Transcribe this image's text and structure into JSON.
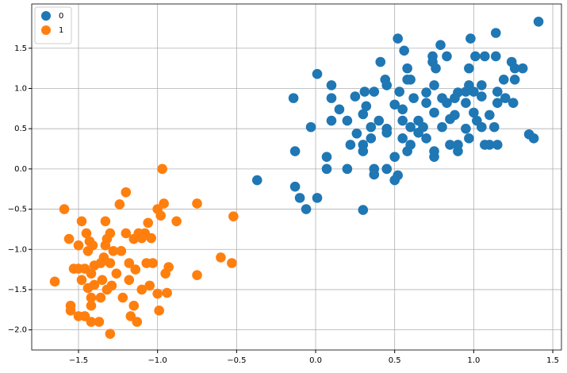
{
  "chart_data": {
    "type": "scatter",
    "xlim": [
      -1.796,
      1.555
    ],
    "ylim": [
      -2.25,
      2.05
    ],
    "xticks": [
      {
        "value": -1.5,
        "label": "−1.5"
      },
      {
        "value": -1.0,
        "label": "−1.0"
      },
      {
        "value": -0.5,
        "label": "−0.5"
      },
      {
        "value": 0,
        "label": "0.0"
      },
      {
        "value": 0.5,
        "label": "0.5"
      },
      {
        "value": 1.0,
        "label": "1.0"
      },
      {
        "value": 1.5,
        "label": "1.5"
      }
    ],
    "yticks": [
      {
        "value": -2.0,
        "label": "−2.0"
      },
      {
        "value": -1.5,
        "label": "−1.5"
      },
      {
        "value": -1.0,
        "label": "−1.0"
      },
      {
        "value": -0.5,
        "label": "−0.5"
      },
      {
        "value": 0,
        "label": "0.0"
      },
      {
        "value": 0.5,
        "label": "0.5"
      },
      {
        "value": 1.0,
        "label": "1.0"
      },
      {
        "value": 1.5,
        "label": "1.5"
      }
    ],
    "grid": true,
    "legend": "upper left",
    "series": [
      {
        "name": "0",
        "color": "#1f77b4",
        "x": [
          1.41,
          1.14,
          0.52,
          0.98,
          0.79,
          0.56,
          1.07,
          1.01,
          1.14,
          0.74,
          0.83,
          1.24,
          0.41,
          0.74,
          1.31,
          1.26,
          0.76,
          0.58,
          0.01,
          0.97,
          0.44,
          0.58,
          0.6,
          1.19,
          1.26,
          0.1,
          0.75,
          0.45,
          0.97,
          1.05,
          0.53,
          0.37,
          0.31,
          0.95,
          1.15,
          1.35,
          0.32,
          0.3,
          0.45,
          0.5,
          0.55,
          0.6,
          0.65,
          0.7,
          0.75,
          0.8,
          0.85,
          0.9,
          0.95,
          1.0,
          1.05,
          1.1,
          1.15,
          1.2,
          1.25,
          0.6,
          0.7,
          0.75,
          0.85,
          0.9,
          0.55,
          0.5,
          0.52,
          0.45,
          0.37,
          0.37,
          0.5,
          0.3,
          0.3,
          0.22,
          0.2,
          0.07,
          0.07,
          0.1,
          0.2,
          0.15,
          0.25,
          -0.03,
          -0.14,
          0.1,
          -0.13,
          -0.37,
          -0.13,
          -0.1,
          -0.06,
          0.01,
          0.3,
          0.4,
          0.45,
          0.65,
          0.8,
          0.95,
          1.02,
          1.07,
          1.15,
          1.13,
          1.0,
          0.88,
          0.83,
          0.68,
          0.58,
          0.75,
          0.7,
          0.62,
          1.38,
          1.1,
          0.88,
          0.35,
          0.26,
          0.35,
          0.55,
          1.05,
          0.97,
          0.9
        ],
        "values": [
          1.83,
          1.69,
          1.62,
          1.62,
          1.54,
          1.47,
          1.4,
          1.4,
          1.4,
          1.4,
          1.4,
          1.33,
          1.33,
          1.33,
          1.25,
          1.25,
          1.25,
          1.25,
          1.18,
          1.25,
          1.11,
          1.11,
          1.11,
          1.11,
          1.11,
          1.04,
          1.04,
          1.04,
          1.04,
          1.04,
          0.96,
          0.96,
          0.96,
          0.96,
          0.96,
          0.43,
          0.78,
          0.68,
          0.5,
          0.8,
          0.74,
          0.52,
          0.6,
          0.82,
          0.7,
          0.88,
          0.62,
          0.95,
          0.5,
          0.7,
          0.52,
          0.3,
          0.82,
          0.88,
          0.82,
          0.3,
          0.38,
          0.15,
          0.3,
          0.22,
          0.38,
          0.15,
          -0.08,
          0,
          0,
          -0.07,
          -0.14,
          0.3,
          0.22,
          0.3,
          0,
          0,
          0.15,
          0.6,
          0.6,
          0.74,
          0.9,
          0.52,
          0.88,
          0.88,
          0.22,
          -0.14,
          -0.22,
          -0.36,
          -0.5,
          -0.36,
          -0.51,
          0.6,
          0.45,
          0.45,
          0.52,
          0.82,
          0.6,
          0.3,
          0.3,
          0.52,
          0.96,
          0.88,
          0.82,
          0.52,
          0.22,
          0.22,
          0.95,
          0.88,
          0.38,
          0.67,
          0.67,
          0.52,
          0.44,
          0.38,
          0.6,
          0.9,
          0.38,
          0.3
        ]
      },
      {
        "name": "1",
        "color": "#ff7f0e",
        "x": [
          -0.97,
          -1.2,
          -1.59,
          -1.48,
          -1.33,
          -1.24,
          -0.96,
          -0.75,
          -1.06,
          -0.88,
          -1.0,
          -0.98,
          -0.52,
          -1.56,
          -1.5,
          -1.45,
          -1.43,
          -1.41,
          -1.32,
          -1.3,
          -1.2,
          -1.12,
          -1.08,
          -1.1,
          -1.04,
          -1.15,
          -1.28,
          -1.44,
          -1.34,
          -1.3,
          -1.4,
          -1.46,
          -1.5,
          -1.53,
          -1.42,
          -1.48,
          -1.44,
          -1.4,
          -1.35,
          -1.26,
          -1.18,
          -1.14,
          -1.07,
          -0.95,
          -0.93,
          -1.03,
          -1.18,
          -1.1,
          -1.05,
          -1.0,
          -0.94,
          -0.75,
          -0.6,
          -0.53,
          -1.65,
          -1.55,
          -1.55,
          -1.5,
          -1.46,
          -1.42,
          -1.37,
          -1.42,
          -1.42,
          -1.36,
          -1.32,
          -1.29,
          -1.22,
          -1.17,
          -1.13,
          -1.15,
          -1.3,
          -0.99,
          -1.23,
          -1.36,
          -1.33
        ],
        "values": [
          0,
          -0.29,
          -0.5,
          -0.65,
          -0.65,
          -0.44,
          -0.43,
          -0.43,
          -0.67,
          -0.65,
          -0.5,
          -0.58,
          -0.59,
          -0.87,
          -0.95,
          -0.8,
          -0.9,
          -0.95,
          -0.87,
          -0.8,
          -0.8,
          -0.8,
          -0.8,
          -0.86,
          -0.86,
          -0.87,
          -1.02,
          -1.02,
          -1.1,
          -1.17,
          -1.2,
          -1.24,
          -1.24,
          -1.24,
          -1.3,
          -1.38,
          -1.48,
          -1.44,
          -1.38,
          -1.3,
          -1.17,
          -1.25,
          -1.17,
          -1.3,
          -1.22,
          -1.17,
          -1.38,
          -1.5,
          -1.45,
          -1.55,
          -1.54,
          -1.32,
          -1.1,
          -1.17,
          -1.4,
          -1.7,
          -1.76,
          -1.83,
          -1.83,
          -1.9,
          -1.9,
          -1.7,
          -1.6,
          -1.6,
          -1.5,
          -1.45,
          -1.6,
          -1.83,
          -1.9,
          -1.7,
          -2.05,
          -1.76,
          -1.02,
          -1.17,
          -0.95
        ]
      }
    ]
  }
}
